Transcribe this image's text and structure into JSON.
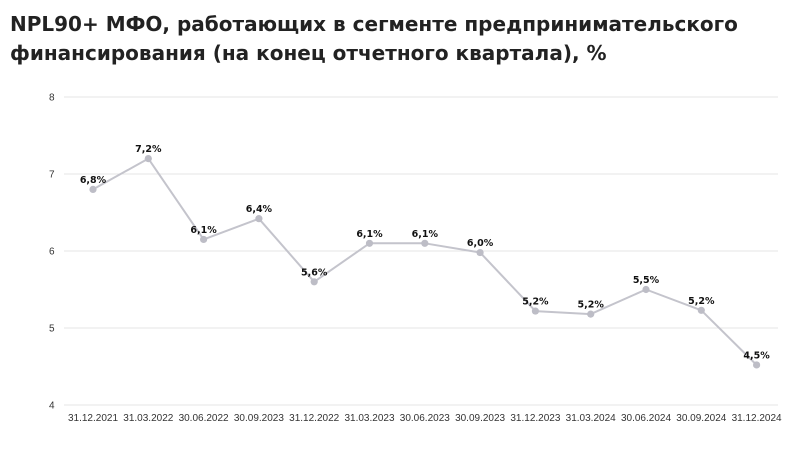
{
  "chart_data": {
    "type": "line",
    "title_lines": [
      "NPL90+ МФО, работающих в сегменте предпринимательского",
      "финансирования (на конец отчетного квартала), %"
    ],
    "categories": [
      "31.12.2021",
      "31.03.2022",
      "30.06.2022",
      "30.09.2023",
      "31.12.2022",
      "31.03.2023",
      "30.06.2023",
      "30.09.2023",
      "31.12.2023",
      "31.03.2024",
      "30.06.2024",
      "30.09.2024",
      "31.12.2024"
    ],
    "values": [
      6.8,
      7.2,
      6.15,
      6.42,
      5.6,
      6.1,
      6.1,
      5.98,
      5.22,
      5.18,
      5.5,
      5.23,
      4.52
    ],
    "data_labels": [
      "6,8%",
      "7,2%",
      "6,1%",
      "6,4%",
      "5,6%",
      "6,1%",
      "6,1%",
      "6,0%",
      "5,2%",
      "5,2%",
      "5,5%",
      "5,2%",
      "4,5%"
    ],
    "ylim": [
      4,
      8
    ],
    "yticks": [
      "4",
      "5",
      "6",
      "7",
      "8"
    ],
    "grid": true,
    "legend": "none",
    "colors": {
      "line": "#c4c4cc",
      "marker": "#bdbdc6",
      "grid": "#e6e6e6"
    }
  }
}
